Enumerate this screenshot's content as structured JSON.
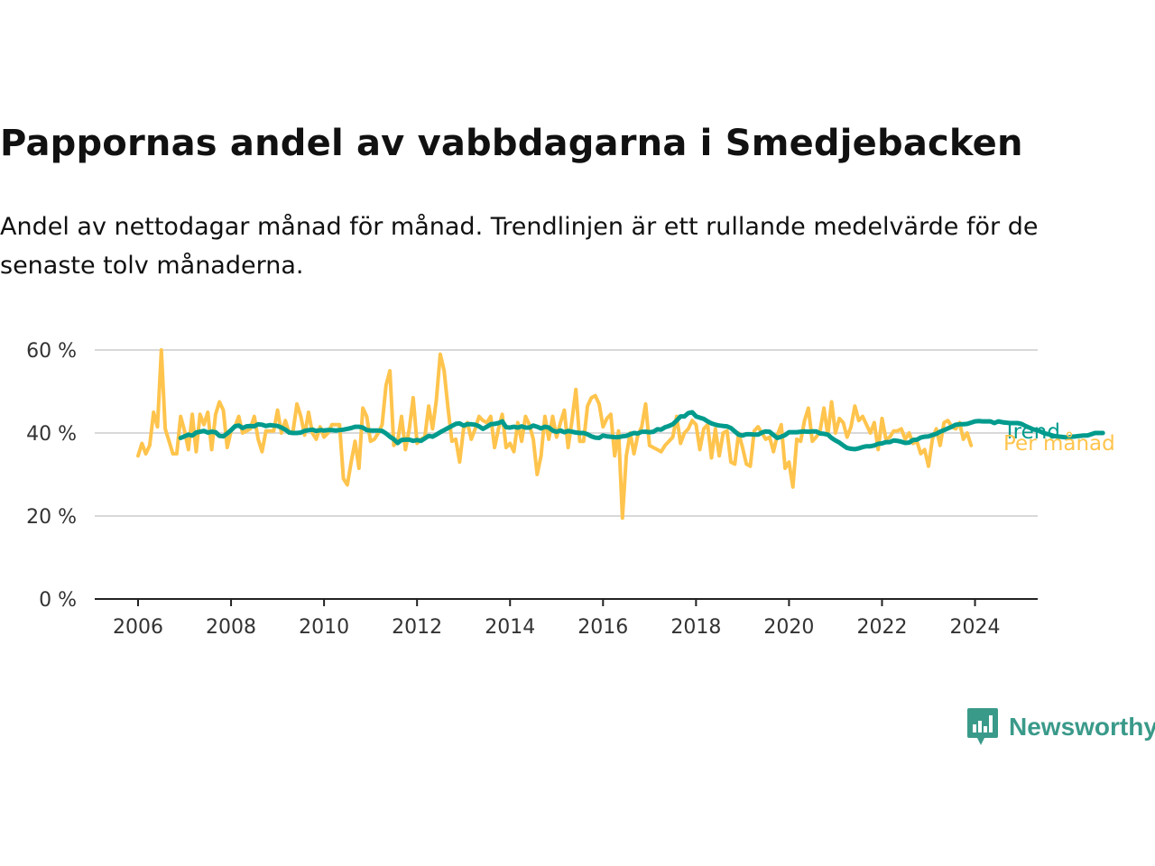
{
  "title": "Pappornas andel av vabbdagarna i Smedjebacken",
  "subtitle": "Andel av nettodagar månad för månad. Trendlinjen är ett rullande medelvärde för de senaste tolv månaderna.",
  "brand": {
    "name": "Newsworthy",
    "icon": "newsworthy-logo-icon",
    "color": "#3a9a8a"
  },
  "chart_data": {
    "type": "line",
    "ylim": [
      0,
      60
    ],
    "yticks": [
      0,
      20,
      40,
      60
    ],
    "ytick_labels": [
      "0 %",
      "20 %",
      "40 %",
      "60 %"
    ],
    "xlim": [
      "2006-01",
      "2024-06"
    ],
    "xtick_labels": [
      "2006",
      "2008",
      "2010",
      "2012",
      "2014",
      "2016",
      "2018",
      "2020",
      "2022",
      "2024"
    ],
    "grid": "horizontal",
    "legend": "inline at line ends (right)",
    "series": [
      {
        "name": "Per månad",
        "color": "#ffc44d",
        "start": "2006-01",
        "values": [
          34.5,
          37.5,
          35,
          37,
          45,
          41.5,
          60,
          41,
          38,
          35,
          35,
          44,
          40.5,
          36,
          44.5,
          35.5,
          44.5,
          42,
          45,
          36,
          44.5,
          47.5,
          45.5,
          36.5,
          40.5,
          41.5,
          44,
          40,
          40.5,
          41,
          44,
          38.5,
          35.5,
          40.5,
          40.5,
          40.5,
          45.5,
          40,
          43,
          40,
          40.5,
          47,
          44,
          39.5,
          45,
          40,
          38.5,
          41.5,
          39,
          40,
          42,
          42,
          42,
          29,
          27.5,
          33,
          38,
          31.5,
          46,
          44,
          38,
          38.5,
          40,
          42,
          51.5,
          55,
          37,
          38,
          44,
          36,
          41,
          48.5,
          37.5,
          38.5,
          39,
          46.5,
          41,
          48,
          59,
          55,
          46,
          38,
          38.5,
          33,
          41,
          42.5,
          38.5,
          41,
          44,
          43,
          42.5,
          44,
          36.5,
          41,
          44.5,
          36.5,
          37.5,
          35.5,
          42.5,
          38,
          44,
          42,
          38.5,
          30,
          34.5,
          44,
          38.5,
          44,
          39,
          42.5,
          45.5,
          36.5,
          43,
          50.5,
          38,
          38,
          46.5,
          48.5,
          49,
          47,
          41.5,
          43.5,
          44.5,
          34.5,
          40.5,
          19.5,
          34.5,
          40,
          35,
          39.5,
          41.5,
          47,
          37,
          36.5,
          36,
          35.5,
          37,
          38,
          39,
          44,
          37.5,
          40,
          41,
          43,
          42,
          36,
          41,
          42,
          34,
          41,
          34.5,
          40,
          40.5,
          33,
          32.5,
          40,
          36.5,
          32.5,
          32,
          40.5,
          41.5,
          40,
          38.5,
          39,
          35.5,
          39.5,
          42,
          31.5,
          33,
          27,
          38.5,
          38,
          43,
          46,
          38,
          39,
          40.5,
          46,
          39.5,
          47.5,
          40,
          43.5,
          42.5,
          39,
          41.5,
          46.5,
          43,
          44,
          42,
          40,
          42.5,
          36,
          43.5,
          38.5,
          39,
          40.5,
          40.5,
          41,
          38.5,
          40,
          37.5,
          38,
          35,
          36,
          32,
          38.5,
          41,
          37,
          42.5,
          43,
          41.5,
          41,
          42.5,
          38.5,
          40,
          37
        ]
      },
      {
        "name": "Trend",
        "color": "#009b8d",
        "start": "2006-12",
        "values": [
          38.8,
          39.2,
          39.6,
          39.4,
          40.1,
          40.3,
          40.5,
          40.1,
          40.3,
          40.2,
          39.3,
          39.2,
          39.9,
          40.7,
          41.6,
          41.8,
          41.2,
          41.6,
          41.7,
          41.6,
          42.1,
          42.0,
          41.7,
          41.9,
          41.8,
          41.7,
          41.3,
          40.8,
          40.1,
          40.0,
          40.0,
          40.1,
          40.5,
          40.7,
          40.8,
          40.5,
          40.7,
          40.6,
          40.7,
          40.7,
          40.6,
          40.7,
          40.8,
          41.0,
          41.2,
          41.5,
          41.5,
          41.3,
          40.7,
          40.6,
          40.6,
          40.6,
          40.5,
          39.9,
          39.1,
          38.5,
          37.6,
          38.3,
          38.4,
          38.4,
          38.1,
          38.3,
          38.1,
          38.7,
          39.3,
          39.1,
          39.6,
          40.2,
          40.7,
          41.2,
          41.7,
          42.2,
          42.3,
          41.8,
          42.1,
          42.1,
          42.0,
          41.6,
          41.0,
          41.5,
          42.1,
          42.2,
          42.4,
          42.8,
          41.4,
          41.3,
          41.5,
          41.3,
          41.6,
          41.3,
          41.3,
          41.8,
          41.5,
          41.1,
          41.5,
          41.3,
          40.6,
          40.3,
          40.6,
          40.2,
          40.5,
          40.3,
          40.1,
          40.0,
          40.0,
          39.7,
          39.2,
          38.9,
          38.8,
          39.4,
          39.2,
          39.1,
          39.0,
          39.0,
          39.2,
          39.3,
          39.7,
          40.0,
          39.9,
          40.3,
          40.3,
          40.2,
          40.3,
          40.9,
          40.8,
          41.4,
          41.7,
          42.1,
          43.0,
          44.0,
          44.0,
          44.8,
          45.0,
          44.0,
          43.7,
          43.4,
          42.8,
          42.3,
          42.0,
          41.8,
          41.7,
          41.6,
          41.2,
          40.4,
          39.6,
          39.4,
          39.7,
          39.7,
          39.6,
          39.6,
          40.1,
          40.4,
          40.3,
          39.5,
          38.8,
          39.1,
          39.5,
          40.2,
          40.2,
          40.2,
          40.3,
          40.4,
          40.3,
          40.4,
          40.4,
          39.9,
          39.8,
          39.6,
          38.8,
          38.2,
          37.7,
          37.0,
          36.4,
          36.2,
          36.1,
          36.3,
          36.6,
          36.8,
          36.8,
          37.0,
          37.4,
          37.5,
          37.8,
          37.8,
          38.2,
          38.1,
          37.9,
          37.6,
          37.7,
          38.3,
          38.4,
          38.9,
          39.1,
          39.2,
          39.5,
          39.8,
          40.3,
          40.7,
          41.1,
          41.5,
          42.0,
          42.1,
          42.1,
          42.2,
          42.5,
          42.8,
          42.9,
          42.8,
          42.8,
          42.8,
          42.4,
          42.8,
          42.6,
          42.5,
          42.4,
          42.4,
          42.4,
          42.2,
          41.7,
          41.3,
          40.9,
          40.7,
          40.3,
          39.9,
          39.7,
          39.4,
          39.2,
          39.1,
          39.0,
          38.9,
          39.1,
          39.2,
          39.3,
          39.4,
          39.4,
          39.7,
          40.0,
          40.0,
          40.0
        ]
      }
    ]
  }
}
